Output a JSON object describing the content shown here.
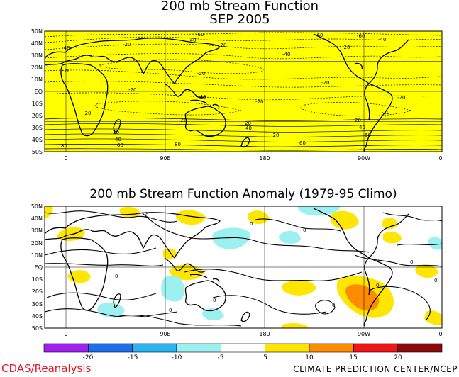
{
  "top_map": {
    "title": "200 mb Stream Function",
    "subtitle": "SEP 2005",
    "fill_color": "#ffff00",
    "lat_labels": [
      "50N",
      "40N",
      "30N",
      "20N",
      "10N",
      "EQ",
      "10S",
      "20S",
      "30S",
      "40S",
      "50S"
    ],
    "lon_labels": [
      "0",
      "90E",
      "180",
      "90W",
      "0"
    ],
    "contour_labels": [
      "-60",
      "-40",
      "-20",
      "-40",
      "-20",
      "-60",
      "-40",
      "-60",
      "-40",
      "-20",
      "-20",
      "-20",
      "-20",
      "-40",
      "-20",
      "-20",
      "-20",
      "-20",
      "20",
      "20",
      "40",
      "40",
      "60",
      "80",
      "80",
      "60",
      "20",
      "40",
      "60",
      "-20",
      "-20",
      "-20"
    ]
  },
  "bottom_map": {
    "title": "200 mb Stream Function Anomaly (1979-95 Climo)",
    "lat_labels": [
      "50N",
      "40N",
      "30N",
      "20N",
      "10N",
      "EQ",
      "10S",
      "20S",
      "30S",
      "40S",
      "50S"
    ],
    "lon_labels": [
      "0",
      "90E",
      "180",
      "90W",
      "0"
    ],
    "contour_labels": [
      "0",
      "0",
      "0",
      "0",
      "0",
      "0",
      "0",
      "0",
      "0",
      "0"
    ]
  },
  "colorbar": {
    "ticks": [
      "-20",
      "-15",
      "-10",
      "-5",
      "5",
      "10",
      "15",
      "20"
    ],
    "colors": [
      "#a020f0",
      "#1e6eeb",
      "#2ab4f0",
      "#9cf0f0",
      "#ffffff",
      "#ffe600",
      "#ff8c00",
      "#f01414",
      "#8c0a0a"
    ]
  },
  "footer": {
    "left": "CDAS/Reanalysis",
    "right": "CLIMATE PREDICTION CENTER/NCEP"
  }
}
